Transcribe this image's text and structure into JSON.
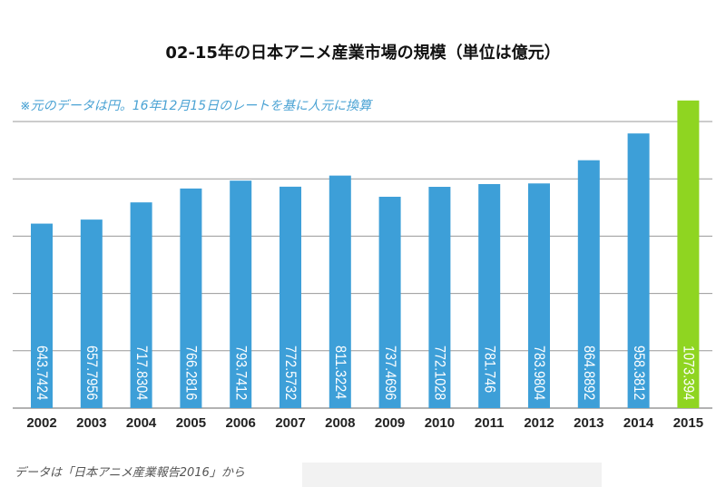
{
  "chart_data": {
    "type": "bar",
    "title": "02-15年の日本アニメ産業市場の規模（単位は億元）",
    "subtitle": "※元のデータは円。16年12月15日のレートを基に人元に換算",
    "footer": "データは「日本アニメ産業報告2016」から",
    "categories": [
      "2002",
      "2003",
      "2004",
      "2005",
      "2006",
      "2007",
      "2008",
      "2009",
      "2010",
      "2011",
      "2012",
      "2013",
      "2014",
      "2015"
    ],
    "values": [
      643.7424,
      657.7956,
      717.8304,
      766.2816,
      793.7412,
      772.5732,
      811.3224,
      737.4696,
      772.1028,
      781.746,
      783.9804,
      864.8892,
      958.3812,
      1073.394
    ],
    "labels": [
      "643.7424",
      "657.7956",
      "717.8304",
      "766.2816",
      "793.7412",
      "772.5732",
      "811.3224",
      "737.4696",
      "772.1028",
      "781.746",
      "783.9804",
      "864.8892",
      "958.3812",
      "1073.394"
    ],
    "ylim": [
      0,
      1000
    ],
    "gridlines": [
      200,
      400,
      600,
      800,
      1000
    ],
    "grid": true,
    "colors": {
      "bar": "#3d9fd8",
      "highlight": "#8fd521",
      "grid": "#999999"
    },
    "highlight_index": 13
  }
}
